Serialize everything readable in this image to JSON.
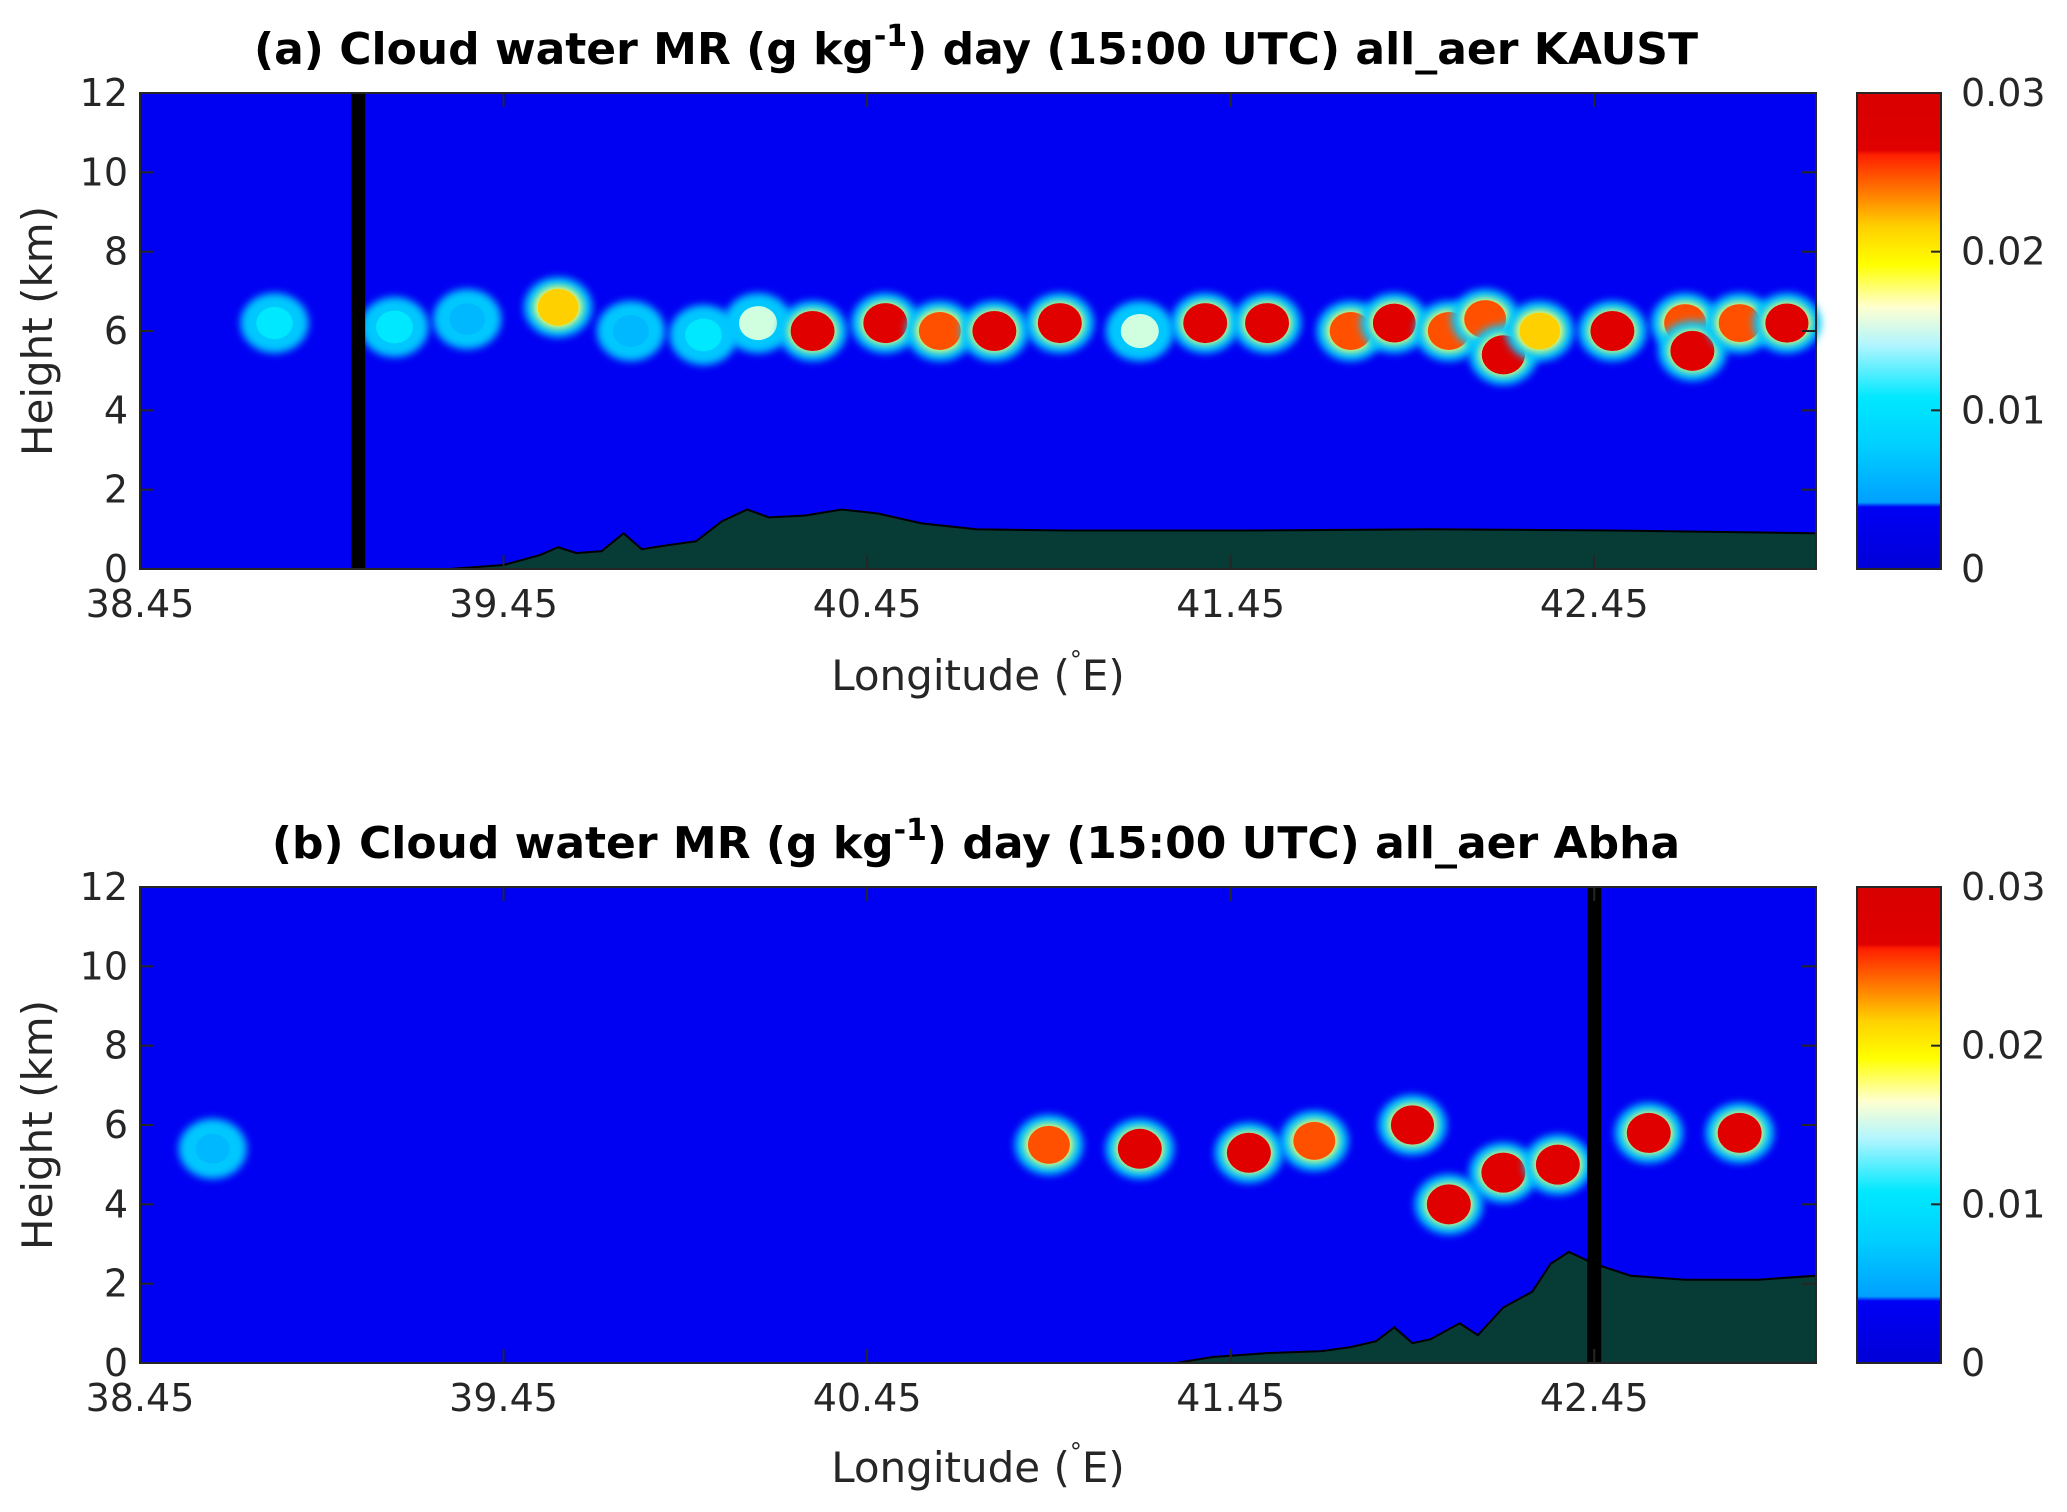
{
  "chart_data": [
    {
      "type": "heatmap",
      "title_main": "(a) Cloud water MR (g kg",
      "title_sup": "-1",
      "title_rest": ") day (15:00 UTC) all_aer KAUST",
      "xlabel_main": "Longitude (",
      "xlabel_deg": "°",
      "xlabel_rest": "E)",
      "ylabel": "Height (km)",
      "xlim": [
        38.45,
        43.06
      ],
      "ylim": [
        0,
        12
      ],
      "xticks": [
        "38.45",
        "39.45",
        "40.45",
        "41.45",
        "42.45"
      ],
      "xtick_values": [
        38.45,
        39.45,
        40.45,
        41.45,
        42.45
      ],
      "yticks": [
        "0",
        "2",
        "4",
        "6",
        "8",
        "10",
        "12"
      ],
      "ytick_values": [
        0,
        2,
        4,
        6,
        8,
        10,
        12
      ],
      "colorbar": {
        "min": 0,
        "max": 0.03,
        "ticks": [
          "0",
          "0.01",
          "0.02",
          "0.03"
        ],
        "tick_values": [
          0,
          0.01,
          0.02,
          0.03
        ]
      },
      "site_marker_lon": 39.05,
      "terrain": [
        [
          38.45,
          0
        ],
        [
          39.3,
          0
        ],
        [
          39.45,
          0.1
        ],
        [
          39.55,
          0.35
        ],
        [
          39.6,
          0.55
        ],
        [
          39.65,
          0.4
        ],
        [
          39.72,
          0.45
        ],
        [
          39.78,
          0.9
        ],
        [
          39.83,
          0.5
        ],
        [
          39.9,
          0.6
        ],
        [
          39.98,
          0.7
        ],
        [
          40.05,
          1.2
        ],
        [
          40.12,
          1.5
        ],
        [
          40.18,
          1.3
        ],
        [
          40.28,
          1.35
        ],
        [
          40.38,
          1.5
        ],
        [
          40.48,
          1.4
        ],
        [
          40.6,
          1.15
        ],
        [
          40.75,
          1.0
        ],
        [
          41.0,
          0.97
        ],
        [
          41.5,
          0.97
        ],
        [
          42.0,
          1.0
        ],
        [
          42.5,
          0.97
        ],
        [
          43.06,
          0.9
        ]
      ],
      "cloud_cells": [
        {
          "lon": 38.82,
          "h": 6.2,
          "value": 0.011
        },
        {
          "lon": 39.15,
          "h": 6.1,
          "value": 0.012
        },
        {
          "lon": 39.35,
          "h": 6.3,
          "value": 0.009
        },
        {
          "lon": 39.6,
          "h": 6.6,
          "value": 0.022
        },
        {
          "lon": 39.8,
          "h": 6.0,
          "value": 0.01
        },
        {
          "lon": 40.0,
          "h": 5.9,
          "value": 0.012
        },
        {
          "lon": 40.15,
          "h": 6.2,
          "value": 0.015
        },
        {
          "lon": 40.3,
          "h": 6.0,
          "value": 0.03
        },
        {
          "lon": 40.5,
          "h": 6.2,
          "value": 0.03
        },
        {
          "lon": 40.65,
          "h": 6.0,
          "value": 0.025
        },
        {
          "lon": 40.8,
          "h": 6.0,
          "value": 0.03
        },
        {
          "lon": 40.98,
          "h": 6.2,
          "value": 0.03
        },
        {
          "lon": 41.2,
          "h": 6.0,
          "value": 0.015
        },
        {
          "lon": 41.38,
          "h": 6.2,
          "value": 0.03
        },
        {
          "lon": 41.55,
          "h": 6.2,
          "value": 0.03
        },
        {
          "lon": 41.78,
          "h": 6.0,
          "value": 0.025
        },
        {
          "lon": 41.9,
          "h": 6.2,
          "value": 0.027
        },
        {
          "lon": 42.05,
          "h": 6.0,
          "value": 0.025
        },
        {
          "lon": 42.15,
          "h": 6.3,
          "value": 0.025
        },
        {
          "lon": 42.2,
          "h": 5.4,
          "value": 0.028
        },
        {
          "lon": 42.3,
          "h": 6.0,
          "value": 0.022
        },
        {
          "lon": 42.5,
          "h": 6.0,
          "value": 0.03
        },
        {
          "lon": 42.7,
          "h": 6.2,
          "value": 0.025
        },
        {
          "lon": 42.72,
          "h": 5.5,
          "value": 0.03
        },
        {
          "lon": 42.85,
          "h": 6.2,
          "value": 0.025
        },
        {
          "lon": 42.98,
          "h": 6.2,
          "value": 0.028
        }
      ]
    },
    {
      "type": "heatmap",
      "title_main": "(b) Cloud water MR (g kg",
      "title_sup": "-1",
      "title_rest": ") day (15:00 UTC) all_aer Abha",
      "xlabel_main": "Longitude (",
      "xlabel_deg": "°",
      "xlabel_rest": "E)",
      "ylabel": "Height (km)",
      "xlim": [
        38.45,
        43.06
      ],
      "ylim": [
        0,
        12
      ],
      "xticks": [
        "38.45",
        "39.45",
        "40.45",
        "41.45",
        "42.45"
      ],
      "xtick_values": [
        38.45,
        39.45,
        40.45,
        41.45,
        42.45
      ],
      "yticks": [
        "0",
        "2",
        "4",
        "6",
        "8",
        "10",
        "12"
      ],
      "ytick_values": [
        0,
        2,
        4,
        6,
        8,
        10,
        12
      ],
      "colorbar": {
        "min": 0,
        "max": 0.03,
        "ticks": [
          "0",
          "0.01",
          "0.02",
          "0.03"
        ],
        "tick_values": [
          0,
          0.01,
          0.02,
          0.03
        ]
      },
      "site_marker_lon": 42.45,
      "terrain": [
        [
          38.45,
          0
        ],
        [
          41.3,
          0
        ],
        [
          41.4,
          0.15
        ],
        [
          41.55,
          0.25
        ],
        [
          41.7,
          0.3
        ],
        [
          41.78,
          0.4
        ],
        [
          41.85,
          0.55
        ],
        [
          41.9,
          0.9
        ],
        [
          41.95,
          0.5
        ],
        [
          42.0,
          0.6
        ],
        [
          42.08,
          1.0
        ],
        [
          42.13,
          0.7
        ],
        [
          42.2,
          1.4
        ],
        [
          42.28,
          1.8
        ],
        [
          42.33,
          2.5
        ],
        [
          42.38,
          2.8
        ],
        [
          42.45,
          2.5
        ],
        [
          42.55,
          2.2
        ],
        [
          42.7,
          2.1
        ],
        [
          42.9,
          2.1
        ],
        [
          43.06,
          2.2
        ]
      ],
      "cloud_cells": [
        {
          "lon": 38.65,
          "h": 5.4,
          "value": 0.005
        },
        {
          "lon": 40.95,
          "h": 5.5,
          "value": 0.025
        },
        {
          "lon": 41.2,
          "h": 5.4,
          "value": 0.03
        },
        {
          "lon": 41.5,
          "h": 5.3,
          "value": 0.03
        },
        {
          "lon": 41.68,
          "h": 5.6,
          "value": 0.025
        },
        {
          "lon": 41.95,
          "h": 6.0,
          "value": 0.028
        },
        {
          "lon": 42.05,
          "h": 4.0,
          "value": 0.03
        },
        {
          "lon": 42.2,
          "h": 4.8,
          "value": 0.03
        },
        {
          "lon": 42.35,
          "h": 5.0,
          "value": 0.03
        },
        {
          "lon": 42.6,
          "h": 5.8,
          "value": 0.03
        },
        {
          "lon": 42.85,
          "h": 5.8,
          "value": 0.03
        }
      ]
    }
  ]
}
